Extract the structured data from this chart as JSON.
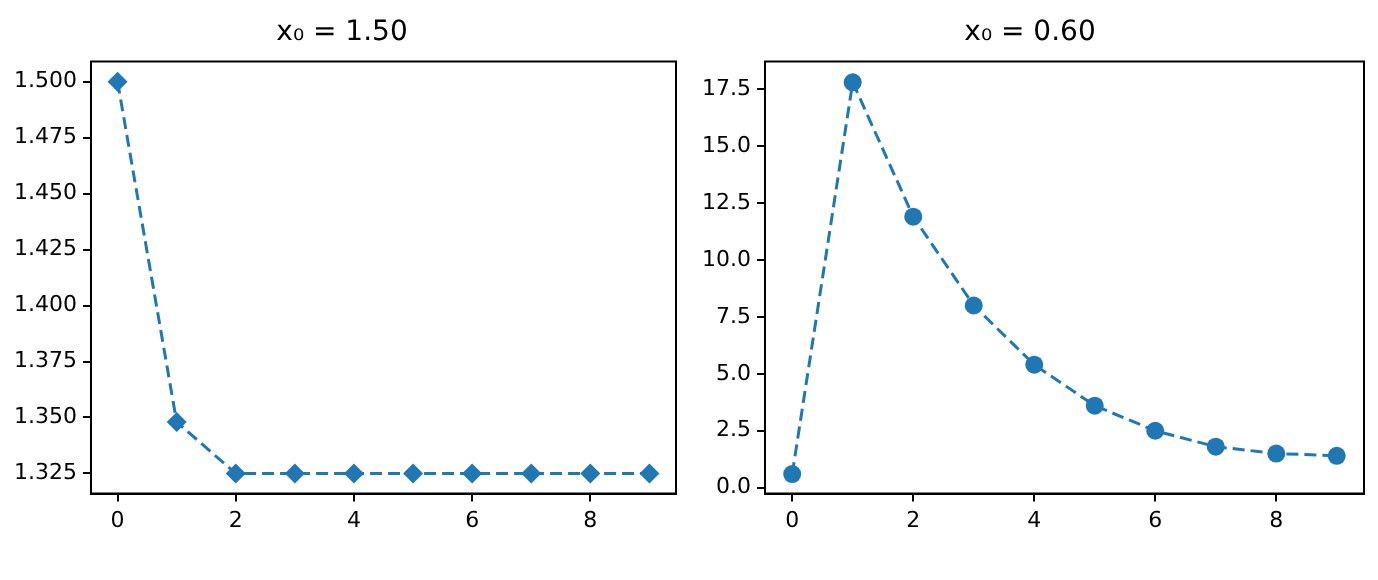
{
  "chart_data": [
    {
      "type": "line",
      "title": "x₀ = 1.50",
      "x": [
        0,
        1,
        2,
        3,
        4,
        5,
        6,
        7,
        8,
        9
      ],
      "series": [
        {
          "color": "#1f77b4",
          "values": [
            1.5,
            1.348,
            1.325,
            1.325,
            1.325,
            1.325,
            1.325,
            1.325,
            1.325,
            1.325
          ]
        }
      ],
      "xlim": [
        -0.45,
        9.45
      ],
      "xticks": [
        0,
        2,
        4,
        6,
        8
      ],
      "ylim": [
        1.316,
        1.509
      ],
      "yticks": [
        {
          "value": 1.325,
          "label": "1.325"
        },
        {
          "value": 1.35,
          "label": "1.350"
        },
        {
          "value": 1.375,
          "label": "1.375"
        },
        {
          "value": 1.4,
          "label": "1.400"
        },
        {
          "value": 1.425,
          "label": "1.425"
        },
        {
          "value": 1.45,
          "label": "1.450"
        },
        {
          "value": 1.475,
          "label": "1.475"
        },
        {
          "value": 1.5,
          "label": "1.500"
        }
      ],
      "grid": false,
      "legend": false,
      "marker": "diamond",
      "line_style": "dashed"
    },
    {
      "type": "line",
      "title": "x₀ = 0.60",
      "x": [
        0,
        1,
        2,
        3,
        4,
        5,
        6,
        7,
        8,
        9
      ],
      "series": [
        {
          "color": "#1f77b4",
          "values": [
            0.6,
            17.8,
            11.9,
            8.0,
            5.4,
            3.6,
            2.5,
            1.8,
            1.5,
            1.4
          ]
        }
      ],
      "xlim": [
        -0.45,
        9.45
      ],
      "xticks": [
        0,
        2,
        4,
        6,
        8
      ],
      "ylim": [
        -0.26,
        18.71
      ],
      "yticks": [
        {
          "value": 0,
          "label": "0.0"
        },
        2.5,
        {
          "value": 5,
          "label": "5.0"
        },
        7.5,
        {
          "value": 10,
          "label": "10.0"
        },
        12.5,
        {
          "value": 15,
          "label": "15.0"
        },
        17.5
      ],
      "grid": false,
      "legend": false,
      "marker": "circle",
      "line_style": "dashed"
    }
  ]
}
